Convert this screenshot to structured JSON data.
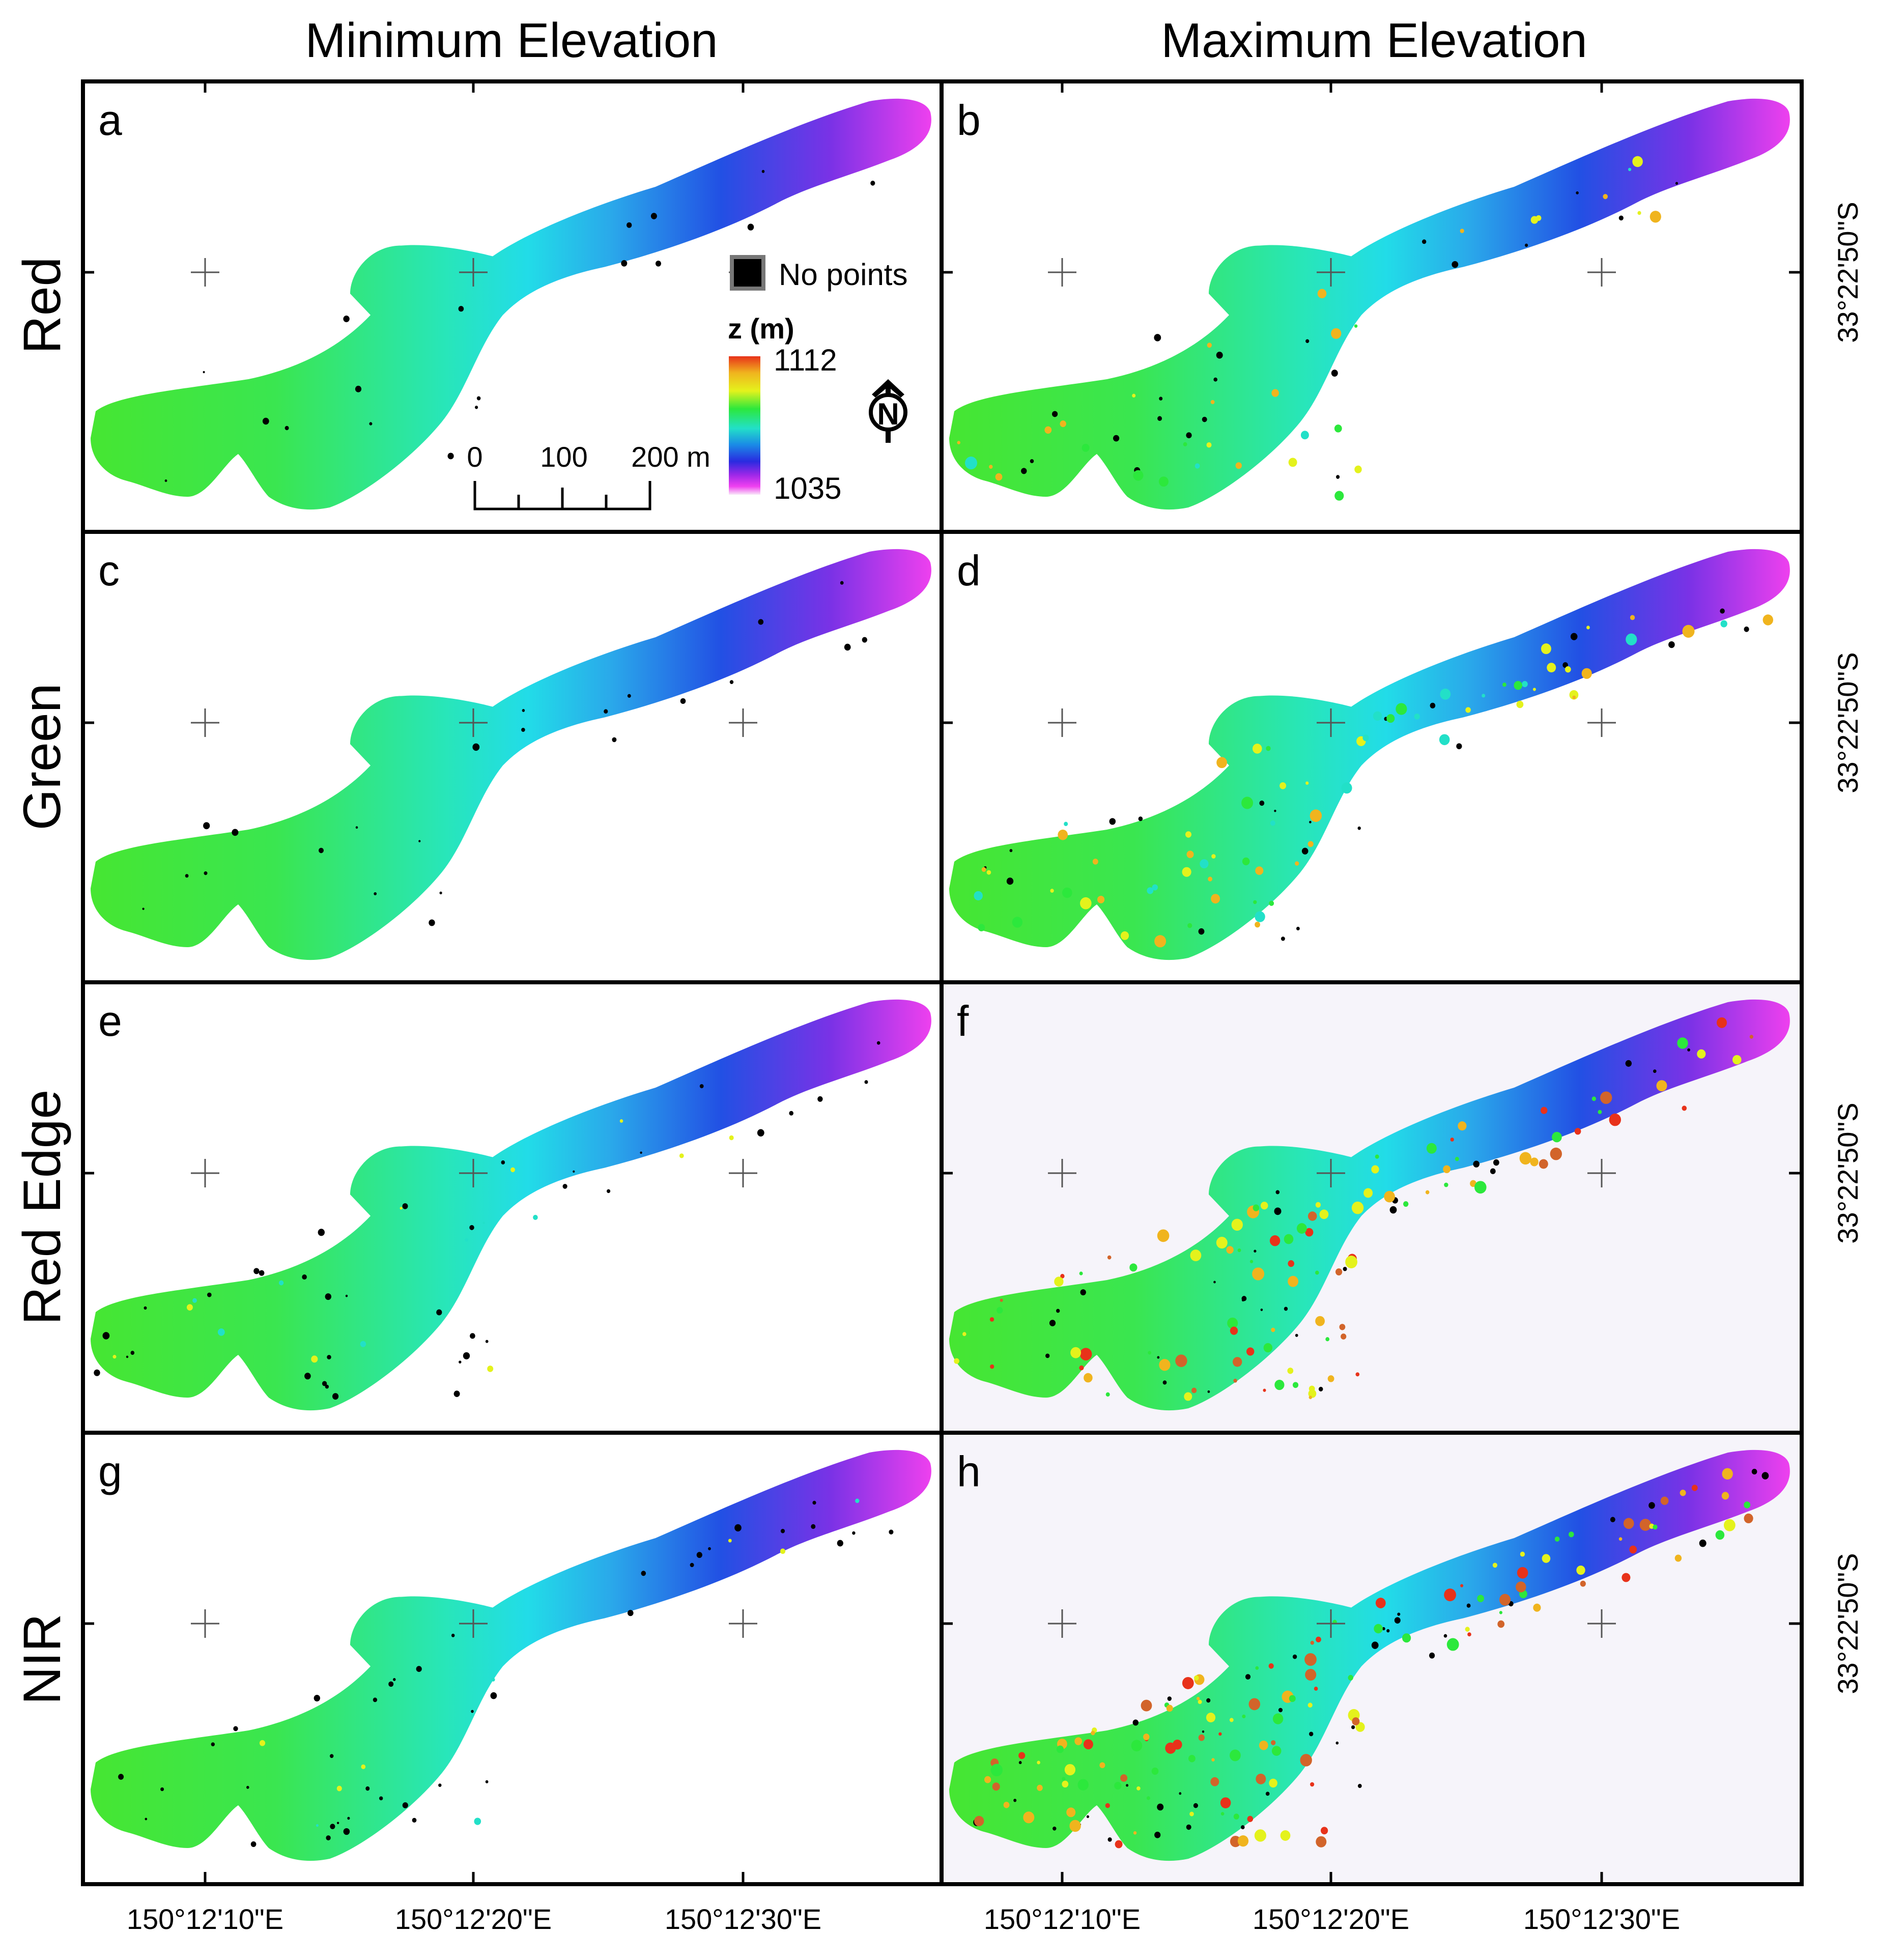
{
  "figure": {
    "column_titles": [
      "Minimum Elevation",
      "Maximum Elevation"
    ],
    "row_labels": [
      "Red",
      "Green",
      "Red Edge",
      "NIR"
    ],
    "panel_letters": [
      "a",
      "b",
      "c",
      "d",
      "e",
      "f",
      "g",
      "h"
    ],
    "x_tick_labels": [
      "150°12'10\"E",
      "150°12'20\"E",
      "150°12'30\"E"
    ],
    "lat_label": "33°22'50\"S"
  },
  "legend": {
    "no_points_label": "No points",
    "title": "z (m)",
    "max_label": "1112",
    "min_label": "1035",
    "max_value": 1112,
    "min_value": 1035,
    "colors": [
      "#e8321a",
      "#f0b41e",
      "#e4f21c",
      "#2ce83c",
      "#22e0c8",
      "#1a8ae6",
      "#2a2ae0",
      "#a028e8",
      "#f040f0",
      "#f8d8f8"
    ]
  },
  "scale_bar": {
    "labels": [
      "0",
      "100",
      "200 m"
    ]
  },
  "north_arrow": {
    "label": "N"
  },
  "colors": {
    "no_points": "#000000",
    "frame": "#000000"
  }
}
